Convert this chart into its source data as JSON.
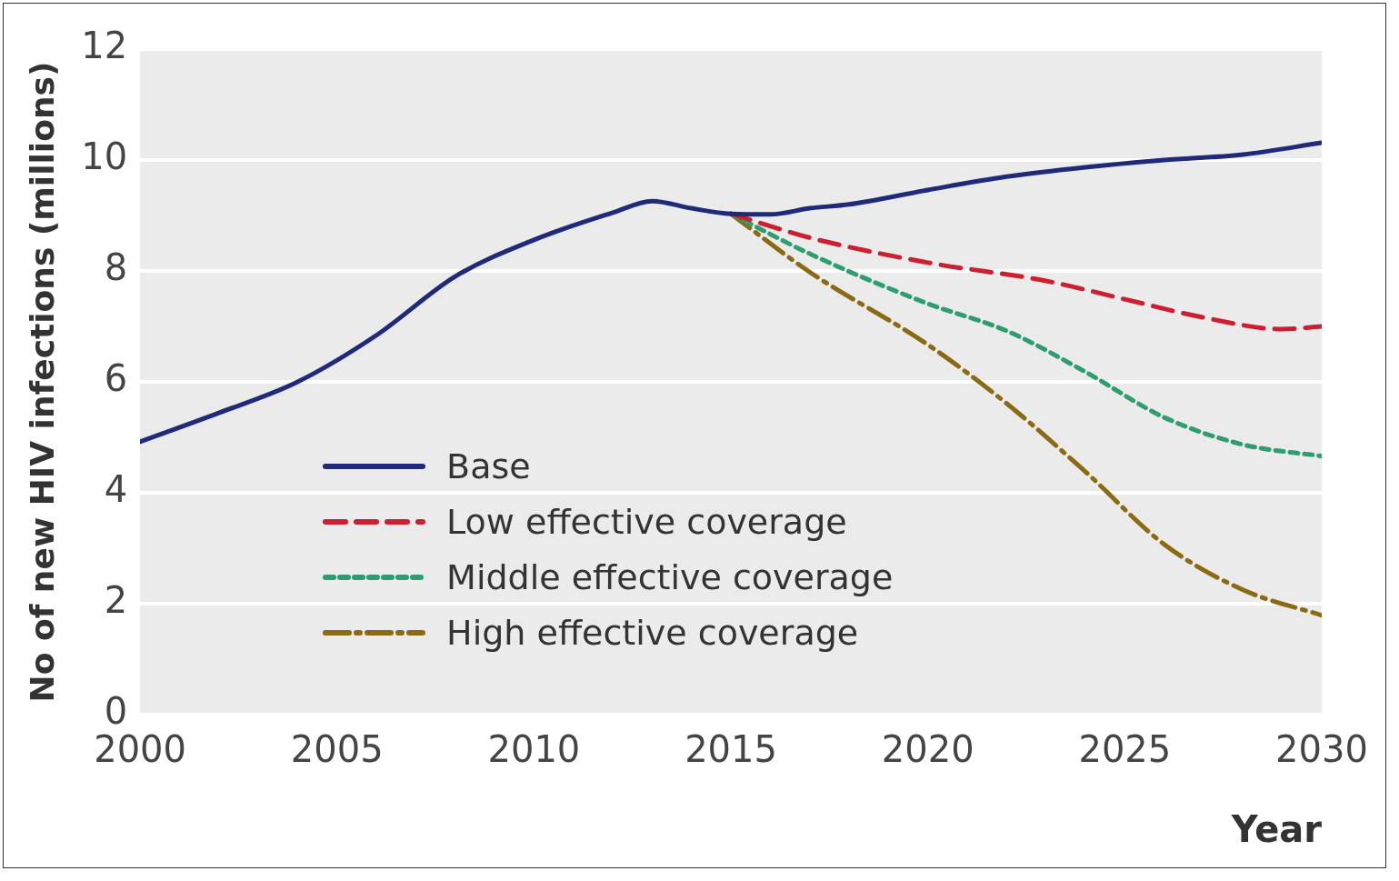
{
  "chart_data": {
    "type": "line",
    "xlabel": "Year",
    "ylabel": "No of new HIV infections (millions)",
    "xlim": [
      2000,
      2030
    ],
    "xticks": [
      2000,
      2005,
      2010,
      2015,
      2020,
      2025,
      2030
    ],
    "ylim": [
      0,
      12
    ],
    "yticks": [
      0,
      2,
      4,
      6,
      8,
      10,
      12
    ],
    "grid": "y",
    "legend": "bottom left",
    "marker": "none",
    "series": [
      {
        "name": "Base",
        "color": "#1f2a7a",
        "line_style": "solid",
        "x": [
          2000,
          2002,
          2004,
          2006,
          2008,
          2010,
          2012,
          2013,
          2014,
          2015,
          2016,
          2017,
          2018,
          2020,
          2022,
          2024,
          2026,
          2028,
          2030
        ],
        "values": [
          4.92,
          5.44,
          6.0,
          6.84,
          7.9,
          8.56,
          9.05,
          9.26,
          9.13,
          9.03,
          9.02,
          9.13,
          9.2,
          9.46,
          9.7,
          9.87,
          10.0,
          10.1,
          10.31
        ]
      },
      {
        "name": "Low effective coverage",
        "color": "#cc1f2f",
        "line_style": "dashed",
        "x": [
          2015,
          2017,
          2020,
          2023,
          2025,
          2027,
          2029,
          2030
        ],
        "values": [
          9.03,
          8.6,
          8.15,
          7.82,
          7.49,
          7.16,
          6.95,
          7.0
        ]
      },
      {
        "name": "Middle effective coverage",
        "color": "#2e9e6e",
        "line_style": "dotted",
        "x": [
          2015,
          2017,
          2020,
          2022,
          2024,
          2026,
          2028,
          2030
        ],
        "values": [
          9.03,
          8.31,
          7.41,
          6.92,
          6.18,
          5.36,
          4.87,
          4.66
        ]
      },
      {
        "name": "High effective coverage",
        "color": "#8b6a14",
        "line_style": "dashdot",
        "x": [
          2015,
          2017,
          2020,
          2022,
          2024,
          2026,
          2028,
          2030
        ],
        "values": [
          9.03,
          7.98,
          6.67,
          5.61,
          4.38,
          3.07,
          2.25,
          1.79
        ]
      }
    ]
  }
}
